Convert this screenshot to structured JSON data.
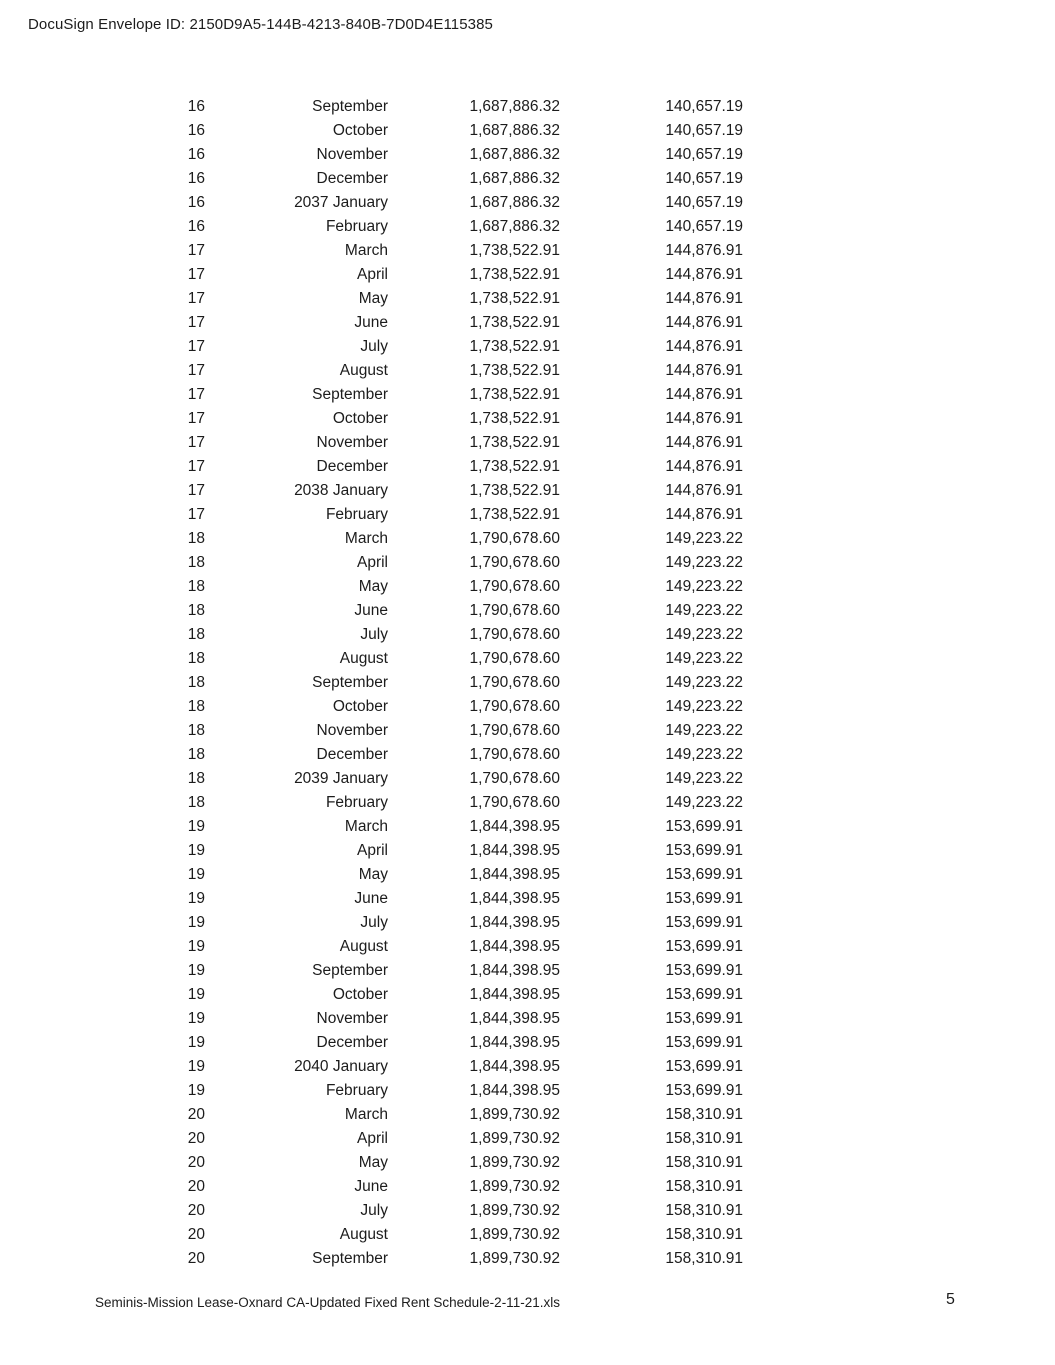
{
  "document": {
    "envelope_header": "DocuSign Envelope ID: 2150D9A5-144B-4213-840B-7D0D4E115385",
    "footer": {
      "filename": "Seminis-Mission Lease-Oxnard CA-Updated Fixed Rent Schedule-2-11-21.xls",
      "page_number": "5"
    },
    "colors": {
      "text": "#1c1c1c",
      "background": "#ffffff"
    },
    "table": {
      "columns": [
        "lease_year",
        "month",
        "annual_rent",
        "monthly_rent"
      ],
      "rows": [
        [
          "16",
          "September",
          "1,687,886.32",
          "140,657.19"
        ],
        [
          "16",
          "October",
          "1,687,886.32",
          "140,657.19"
        ],
        [
          "16",
          "November",
          "1,687,886.32",
          "140,657.19"
        ],
        [
          "16",
          "December",
          "1,687,886.32",
          "140,657.19"
        ],
        [
          "16",
          "2037 January",
          "1,687,886.32",
          "140,657.19"
        ],
        [
          "16",
          "February",
          "1,687,886.32",
          "140,657.19"
        ],
        [
          "17",
          "March",
          "1,738,522.91",
          "144,876.91"
        ],
        [
          "17",
          "April",
          "1,738,522.91",
          "144,876.91"
        ],
        [
          "17",
          "May",
          "1,738,522.91",
          "144,876.91"
        ],
        [
          "17",
          "June",
          "1,738,522.91",
          "144,876.91"
        ],
        [
          "17",
          "July",
          "1,738,522.91",
          "144,876.91"
        ],
        [
          "17",
          "August",
          "1,738,522.91",
          "144,876.91"
        ],
        [
          "17",
          "September",
          "1,738,522.91",
          "144,876.91"
        ],
        [
          "17",
          "October",
          "1,738,522.91",
          "144,876.91"
        ],
        [
          "17",
          "November",
          "1,738,522.91",
          "144,876.91"
        ],
        [
          "17",
          "December",
          "1,738,522.91",
          "144,876.91"
        ],
        [
          "17",
          "2038 January",
          "1,738,522.91",
          "144,876.91"
        ],
        [
          "17",
          "February",
          "1,738,522.91",
          "144,876.91"
        ],
        [
          "18",
          "March",
          "1,790,678.60",
          "149,223.22"
        ],
        [
          "18",
          "April",
          "1,790,678.60",
          "149,223.22"
        ],
        [
          "18",
          "May",
          "1,790,678.60",
          "149,223.22"
        ],
        [
          "18",
          "June",
          "1,790,678.60",
          "149,223.22"
        ],
        [
          "18",
          "July",
          "1,790,678.60",
          "149,223.22"
        ],
        [
          "18",
          "August",
          "1,790,678.60",
          "149,223.22"
        ],
        [
          "18",
          "September",
          "1,790,678.60",
          "149,223.22"
        ],
        [
          "18",
          "October",
          "1,790,678.60",
          "149,223.22"
        ],
        [
          "18",
          "November",
          "1,790,678.60",
          "149,223.22"
        ],
        [
          "18",
          "December",
          "1,790,678.60",
          "149,223.22"
        ],
        [
          "18",
          "2039 January",
          "1,790,678.60",
          "149,223.22"
        ],
        [
          "18",
          "February",
          "1,790,678.60",
          "149,223.22"
        ],
        [
          "19",
          "March",
          "1,844,398.95",
          "153,699.91"
        ],
        [
          "19",
          "April",
          "1,844,398.95",
          "153,699.91"
        ],
        [
          "19",
          "May",
          "1,844,398.95",
          "153,699.91"
        ],
        [
          "19",
          "June",
          "1,844,398.95",
          "153,699.91"
        ],
        [
          "19",
          "July",
          "1,844,398.95",
          "153,699.91"
        ],
        [
          "19",
          "August",
          "1,844,398.95",
          "153,699.91"
        ],
        [
          "19",
          "September",
          "1,844,398.95",
          "153,699.91"
        ],
        [
          "19",
          "October",
          "1,844,398.95",
          "153,699.91"
        ],
        [
          "19",
          "November",
          "1,844,398.95",
          "153,699.91"
        ],
        [
          "19",
          "December",
          "1,844,398.95",
          "153,699.91"
        ],
        [
          "19",
          "2040 January",
          "1,844,398.95",
          "153,699.91"
        ],
        [
          "19",
          "February",
          "1,844,398.95",
          "153,699.91"
        ],
        [
          "20",
          "March",
          "1,899,730.92",
          "158,310.91"
        ],
        [
          "20",
          "April",
          "1,899,730.92",
          "158,310.91"
        ],
        [
          "20",
          "May",
          "1,899,730.92",
          "158,310.91"
        ],
        [
          "20",
          "June",
          "1,899,730.92",
          "158,310.91"
        ],
        [
          "20",
          "July",
          "1,899,730.92",
          "158,310.91"
        ],
        [
          "20",
          "August",
          "1,899,730.92",
          "158,310.91"
        ],
        [
          "20",
          "September",
          "1,899,730.92",
          "158,310.91"
        ]
      ]
    }
  }
}
